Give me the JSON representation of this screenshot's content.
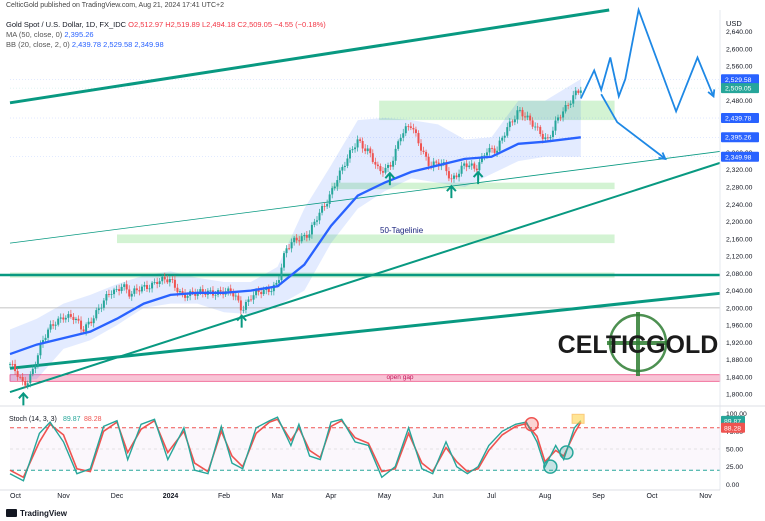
{
  "publisher_line": "CelticGold published on TradingView.com, Aug 21, 2024 17:41 UTC+2",
  "legend": {
    "symbol": "Gold Spot / U.S. Dollar, 1D, FX_IDC",
    "ohlc": "O2,512.97  H2,519.89  L2,494.18  C2,509.05  −4.55 (−0.18%)",
    "ma_label": "MA (50, close, 0)",
    "ma_value": "2,395.26",
    "bb_label": "BB (20, close, 2, 0)",
    "bb_values": "2,439.78  2,529.58  2,349.98"
  },
  "currency": "USD",
  "footer_brand": "TradingView",
  "logo_text": "CELTICGOLD",
  "colors": {
    "up": "#26a69a",
    "down": "#ef5350",
    "ma": "#2962ff",
    "trend": "#089981",
    "bb": "#2962ff",
    "zone": "#c8f0c8",
    "gap": "#f8c4d6",
    "stoch_k": "#26a69a",
    "stoch_d": "#ef5350",
    "arrow": "#1e88e5"
  },
  "chart_data": [
    {
      "type": "candlestick",
      "y_axis": {
        "range": [
          1775,
          2690
        ],
        "ticks": [
          1800,
          1840,
          1880,
          1920,
          1960,
          2000,
          2040,
          2080,
          2120,
          2160,
          2200,
          2240,
          2280,
          2320,
          2360,
          2400,
          2440,
          2480,
          2520,
          2560,
          2600,
          2640
        ],
        "tick_labels": [
          "1,800.00",
          "1,840.00",
          "1,880.00",
          "1,920.00",
          "1,960.00",
          "2,000.00",
          "2,040.00",
          "2,080.00",
          "2,120.00",
          "2,160.00",
          "2,200.00",
          "2,240.00",
          "2,280.00",
          "2,320.00",
          "2,360.00",
          "2,400.00",
          "2,440.00",
          "2,480.00",
          "2,520.00",
          "2,560.00",
          "2,600.00",
          "2,640.00"
        ]
      },
      "x_axis": {
        "labels": [
          "Oct",
          "Nov",
          "Dec",
          "2024",
          "Feb",
          "Mar",
          "Apr",
          "May",
          "Jun",
          "Jul",
          "Aug",
          "Sep",
          "Oct",
          "Nov"
        ],
        "label_months": [
          0,
          1,
          2,
          3,
          4,
          5,
          6,
          7,
          8,
          9,
          10,
          11,
          12,
          13
        ]
      },
      "price_path": [
        [
          0.0,
          1870
        ],
        [
          0.25,
          1820
        ],
        [
          0.35,
          1835
        ],
        [
          0.6,
          1920
        ],
        [
          0.8,
          1960
        ],
        [
          1.0,
          1985
        ],
        [
          1.2,
          1975
        ],
        [
          1.35,
          1945
        ],
        [
          1.6,
          1990
        ],
        [
          1.9,
          2035
        ],
        [
          2.0,
          2040
        ],
        [
          2.1,
          2060
        ],
        [
          2.25,
          2030
        ],
        [
          2.5,
          2045
        ],
        [
          2.75,
          2065
        ],
        [
          3.0,
          2060
        ],
        [
          3.2,
          2035
        ],
        [
          3.5,
          2030
        ],
        [
          3.75,
          2040
        ],
        [
          4.0,
          2035
        ],
        [
          4.2,
          2030
        ],
        [
          4.33,
          2000
        ],
        [
          4.5,
          2025
        ],
        [
          4.8,
          2040
        ],
        [
          5.0,
          2060
        ],
        [
          5.15,
          2130
        ],
        [
          5.35,
          2160
        ],
        [
          5.6,
          2175
        ],
        [
          5.9,
          2240
        ],
        [
          6.1,
          2300
        ],
        [
          6.3,
          2340
        ],
        [
          6.5,
          2390
        ],
        [
          6.7,
          2365
        ],
        [
          6.9,
          2310
        ],
        [
          7.1,
          2330
        ],
        [
          7.3,
          2400
        ],
        [
          7.5,
          2420
        ],
        [
          7.7,
          2370
        ],
        [
          7.85,
          2330
        ],
        [
          8.1,
          2330
        ],
        [
          8.25,
          2300
        ],
        [
          8.5,
          2330
        ],
        [
          8.7,
          2320
        ],
        [
          8.9,
          2370
        ],
        [
          9.1,
          2360
        ],
        [
          9.3,
          2420
        ],
        [
          9.5,
          2460
        ],
        [
          9.7,
          2430
        ],
        [
          9.9,
          2410
        ],
        [
          10.05,
          2390
        ],
        [
          10.2,
          2425
        ],
        [
          10.4,
          2465
        ],
        [
          10.55,
          2500
        ],
        [
          10.67,
          2509
        ]
      ],
      "ma50": [
        [
          0.0,
          1893
        ],
        [
          0.5,
          1915
        ],
        [
          1.0,
          1930
        ],
        [
          1.5,
          1945
        ],
        [
          2.0,
          1975
        ],
        [
          2.5,
          2010
        ],
        [
          3.0,
          2030
        ],
        [
          3.5,
          2035
        ],
        [
          4.0,
          2035
        ],
        [
          4.5,
          2040
        ],
        [
          5.0,
          2050
        ],
        [
          5.5,
          2100
        ],
        [
          6.0,
          2190
        ],
        [
          6.5,
          2260
        ],
        [
          7.0,
          2290
        ],
        [
          7.5,
          2315
        ],
        [
          8.0,
          2330
        ],
        [
          8.5,
          2345
        ],
        [
          9.0,
          2350
        ],
        [
          9.5,
          2380
        ],
        [
          10.0,
          2385
        ],
        [
          10.67,
          2395
        ]
      ],
      "bollinger": {
        "upper": [
          [
            0.0,
            1950
          ],
          [
            0.5,
            1975
          ],
          [
            1.0,
            2010
          ],
          [
            1.5,
            2030
          ],
          [
            2.0,
            2055
          ],
          [
            2.5,
            2075
          ],
          [
            3.0,
            2085
          ],
          [
            3.5,
            2070
          ],
          [
            4.0,
            2060
          ],
          [
            4.5,
            2060
          ],
          [
            5.0,
            2095
          ],
          [
            5.5,
            2230
          ],
          [
            6.0,
            2330
          ],
          [
            6.5,
            2435
          ],
          [
            7.0,
            2440
          ],
          [
            7.5,
            2435
          ],
          [
            8.0,
            2425
          ],
          [
            8.5,
            2390
          ],
          [
            9.0,
            2395
          ],
          [
            9.5,
            2480
          ],
          [
            10.0,
            2480
          ],
          [
            10.67,
            2530
          ]
        ],
        "lower": [
          [
            0.0,
            1830
          ],
          [
            0.5,
            1835
          ],
          [
            1.0,
            1905
          ],
          [
            1.5,
            1925
          ],
          [
            2.0,
            1960
          ],
          [
            2.5,
            2000
          ],
          [
            3.0,
            2010
          ],
          [
            3.5,
            2010
          ],
          [
            4.0,
            1990
          ],
          [
            4.5,
            1985
          ],
          [
            5.0,
            2005
          ],
          [
            5.5,
            2040
          ],
          [
            6.0,
            2150
          ],
          [
            6.5,
            2230
          ],
          [
            7.0,
            2270
          ],
          [
            7.5,
            2300
          ],
          [
            8.0,
            2290
          ],
          [
            8.5,
            2280
          ],
          [
            9.0,
            2310
          ],
          [
            9.5,
            2340
          ],
          [
            10.0,
            2350
          ],
          [
            10.67,
            2350
          ]
        ]
      },
      "support_zones": [
        {
          "from_month": 6.9,
          "to_month": 11.3,
          "low": 2435,
          "high": 2480
        },
        {
          "from_month": 6.0,
          "to_month": 11.3,
          "low": 2275,
          "high": 2290
        },
        {
          "from_month": 2.0,
          "to_month": 11.3,
          "low": 2150,
          "high": 2170
        },
        {
          "from_month": 0.0,
          "to_month": 11.3,
          "low": 2070,
          "high": 2082
        }
      ],
      "horizontal_lines": [
        {
          "value": 2076,
          "style": "thick"
        },
        {
          "value": 2000,
          "style": "thin"
        }
      ],
      "open_gap": {
        "low": 1830,
        "high": 1845,
        "label": "open gap"
      },
      "trendlines": [
        {
          "from": [
            0.0,
            2475
          ],
          "to": [
            11.2,
            2690
          ],
          "width": 3
        },
        {
          "from": [
            0.0,
            1805
          ],
          "to": [
            13.75,
            2355
          ],
          "width": 2
        },
        {
          "from": [
            0.0,
            1860
          ],
          "to": [
            13.75,
            2040
          ],
          "width": 3
        },
        {
          "from": [
            0.0,
            2150
          ],
          "to": [
            13.75,
            2370
          ],
          "width": 0.8
        }
      ],
      "projection_lines": [
        [
          [
            10.67,
            2485
          ],
          [
            10.92,
            2550
          ],
          [
            11.05,
            2505
          ],
          [
            11.22,
            2580
          ],
          [
            11.38,
            2490
          ],
          [
            11.5,
            2530
          ],
          [
            11.75,
            2690
          ],
          [
            12.45,
            2455
          ],
          [
            12.85,
            2580
          ],
          [
            13.15,
            2490
          ]
        ],
        [
          [
            11.05,
            2495
          ],
          [
            11.35,
            2430
          ],
          [
            12.25,
            2345
          ]
        ]
      ],
      "markers_up": [
        0.25,
        4.33,
        7.1,
        8.25,
        8.75
      ],
      "annotation": {
        "text": "50-Tagelinie",
        "x": 7.4,
        "y": 2190
      },
      "last_value_tags": [
        {
          "value": 2529.58,
          "text": "2,529.58",
          "color": "#2962ff"
        },
        {
          "value": 2509.05,
          "text": "2,509.05",
          "color": "#26a69a"
        },
        {
          "value": 2439.78,
          "text": "2,439.78",
          "color": "#2962ff"
        },
        {
          "value": 2395.26,
          "text": "2,395.26",
          "color": "#2962ff"
        },
        {
          "value": 2349.98,
          "text": "2,349.98",
          "color": "#2962ff"
        }
      ]
    },
    {
      "type": "line",
      "title": "Stoch (14, 3, 3)",
      "k_value": "89.87",
      "d_value": "88.28",
      "y_axis": {
        "range": [
          -8,
          108
        ],
        "ticks": [
          0,
          25,
          50,
          75,
          100
        ],
        "tick_labels": [
          "0.00",
          "25.00",
          "50.00",
          "75.00",
          "100.00"
        ]
      },
      "levels": [
        {
          "value": 80,
          "color": "#ef5350"
        },
        {
          "value": 20,
          "color": "#26a69a"
        }
      ],
      "k": [
        [
          0.0,
          15
        ],
        [
          0.25,
          5
        ],
        [
          0.55,
          72
        ],
        [
          0.75,
          88
        ],
        [
          1.0,
          60
        ],
        [
          1.25,
          15
        ],
        [
          1.5,
          22
        ],
        [
          1.75,
          82
        ],
        [
          2.0,
          90
        ],
        [
          2.2,
          35
        ],
        [
          2.45,
          85
        ],
        [
          2.7,
          92
        ],
        [
          2.95,
          35
        ],
        [
          3.25,
          80
        ],
        [
          3.45,
          20
        ],
        [
          3.7,
          15
        ],
        [
          3.95,
          82
        ],
        [
          4.15,
          30
        ],
        [
          4.35,
          22
        ],
        [
          4.6,
          80
        ],
        [
          4.85,
          90
        ],
        [
          5.0,
          95
        ],
        [
          5.25,
          55
        ],
        [
          5.4,
          85
        ],
        [
          5.6,
          40
        ],
        [
          5.8,
          35
        ],
        [
          6.0,
          88
        ],
        [
          6.2,
          92
        ],
        [
          6.45,
          60
        ],
        [
          6.7,
          55
        ],
        [
          6.95,
          10
        ],
        [
          7.2,
          25
        ],
        [
          7.45,
          80
        ],
        [
          7.7,
          22
        ],
        [
          7.9,
          15
        ],
        [
          8.15,
          60
        ],
        [
          8.35,
          25
        ],
        [
          8.55,
          15
        ],
        [
          8.75,
          25
        ],
        [
          8.95,
          55
        ],
        [
          9.2,
          75
        ],
        [
          9.45,
          85
        ],
        [
          9.65,
          88
        ],
        [
          9.85,
          60
        ],
        [
          10.0,
          25
        ],
        [
          10.2,
          55
        ],
        [
          10.35,
          35
        ],
        [
          10.55,
          80
        ],
        [
          10.67,
          90
        ]
      ],
      "d": [
        [
          0.0,
          20
        ],
        [
          0.25,
          10
        ],
        [
          0.55,
          60
        ],
        [
          0.75,
          85
        ],
        [
          1.0,
          70
        ],
        [
          1.25,
          22
        ],
        [
          1.5,
          18
        ],
        [
          1.75,
          75
        ],
        [
          2.0,
          88
        ],
        [
          2.2,
          45
        ],
        [
          2.45,
          78
        ],
        [
          2.7,
          90
        ],
        [
          2.95,
          45
        ],
        [
          3.25,
          75
        ],
        [
          3.45,
          30
        ],
        [
          3.7,
          18
        ],
        [
          3.95,
          75
        ],
        [
          4.15,
          40
        ],
        [
          4.35,
          25
        ],
        [
          4.6,
          72
        ],
        [
          4.85,
          88
        ],
        [
          5.0,
          92
        ],
        [
          5.25,
          62
        ],
        [
          5.4,
          80
        ],
        [
          5.6,
          48
        ],
        [
          5.8,
          38
        ],
        [
          6.0,
          82
        ],
        [
          6.2,
          90
        ],
        [
          6.45,
          66
        ],
        [
          6.7,
          58
        ],
        [
          6.95,
          18
        ],
        [
          7.2,
          22
        ],
        [
          7.45,
          72
        ],
        [
          7.7,
          30
        ],
        [
          7.9,
          18
        ],
        [
          8.15,
          52
        ],
        [
          8.35,
          32
        ],
        [
          8.55,
          18
        ],
        [
          8.75,
          22
        ],
        [
          8.95,
          48
        ],
        [
          9.2,
          70
        ],
        [
          9.45,
          82
        ],
        [
          9.65,
          86
        ],
        [
          9.85,
          68
        ],
        [
          10.0,
          32
        ],
        [
          10.2,
          48
        ],
        [
          10.35,
          40
        ],
        [
          10.55,
          72
        ],
        [
          10.67,
          88
        ]
      ],
      "circles": [
        {
          "x": 9.75,
          "y": 85,
          "color": "#ef5350"
        },
        {
          "x": 10.1,
          "y": 25,
          "color": "#26a69a"
        },
        {
          "x": 10.4,
          "y": 45,
          "color": "#26a69a"
        }
      ]
    }
  ]
}
